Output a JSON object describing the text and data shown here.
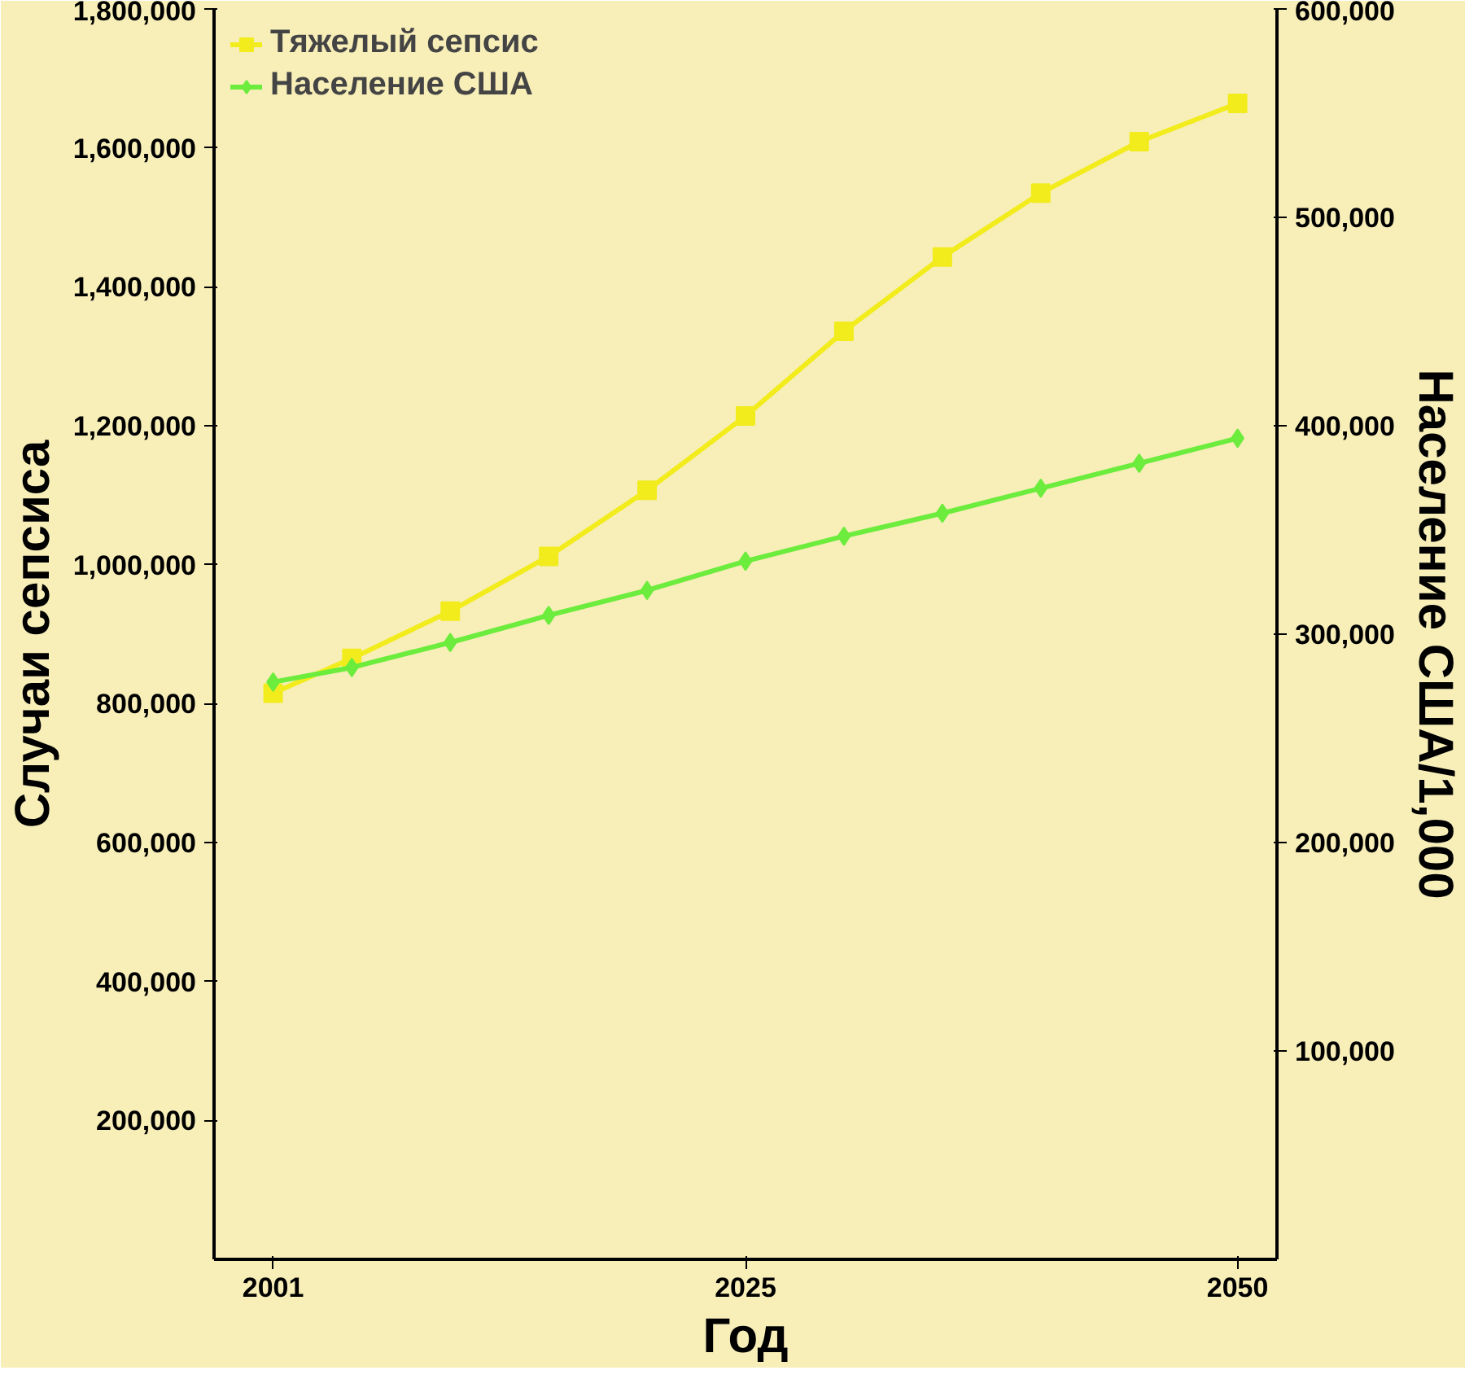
{
  "chart_data": {
    "type": "line",
    "xlabel": "Год",
    "ylabel": "Случаи сепсиса",
    "y2label": "Население США/1,000",
    "x": [
      2001,
      2005,
      2010,
      2015,
      2020,
      2025,
      2030,
      2035,
      2040,
      2045,
      2050
    ],
    "series": [
      {
        "name": "Тяжелый сепсис",
        "color": "#f2ec1c",
        "marker": "square",
        "values": [
          815000,
          865000,
          933000,
          1012000,
          1107000,
          1214000,
          1336000,
          1443000,
          1535000,
          1609000,
          1664000
        ]
      },
      {
        "name": "Население США",
        "color": "#6cec3c",
        "marker": "diamond",
        "axis": "y2",
        "values": [
          277000,
          284000,
          296000,
          309000,
          321000,
          335000,
          347000,
          358000,
          370000,
          382000,
          394000
        ]
      }
    ],
    "xlim": [
      1998,
      2052
    ],
    "xticks": [
      2001,
      2025,
      2050
    ],
    "ylim": [
      0,
      1800000
    ],
    "yticks": [
      {
        "value": 200000,
        "label": "200,000"
      },
      {
        "value": 400000,
        "label": "400,000"
      },
      {
        "value": 600000,
        "label": "600,000"
      },
      {
        "value": 800000,
        "label": "800,000"
      },
      {
        "value": 1000000,
        "label": "1,000,000"
      },
      {
        "value": 1200000,
        "label": "1,200,000"
      },
      {
        "value": 1400000,
        "label": "1,400,000"
      },
      {
        "value": 1600000,
        "label": "1,600,000"
      },
      {
        "value": 1800000,
        "label": "1,800,000"
      }
    ],
    "y2lim": [
      0,
      600000
    ],
    "y2ticks": [
      {
        "value": 100000,
        "label": "100,000"
      },
      {
        "value": 200000,
        "label": "200,000"
      },
      {
        "value": 300000,
        "label": "300,000"
      },
      {
        "value": 400000,
        "label": "400,000"
      },
      {
        "value": 500000,
        "label": "500,000"
      },
      {
        "value": 600000,
        "label": "600,000"
      }
    ],
    "grid": false,
    "legend": "top left",
    "line_style": "solid"
  }
}
